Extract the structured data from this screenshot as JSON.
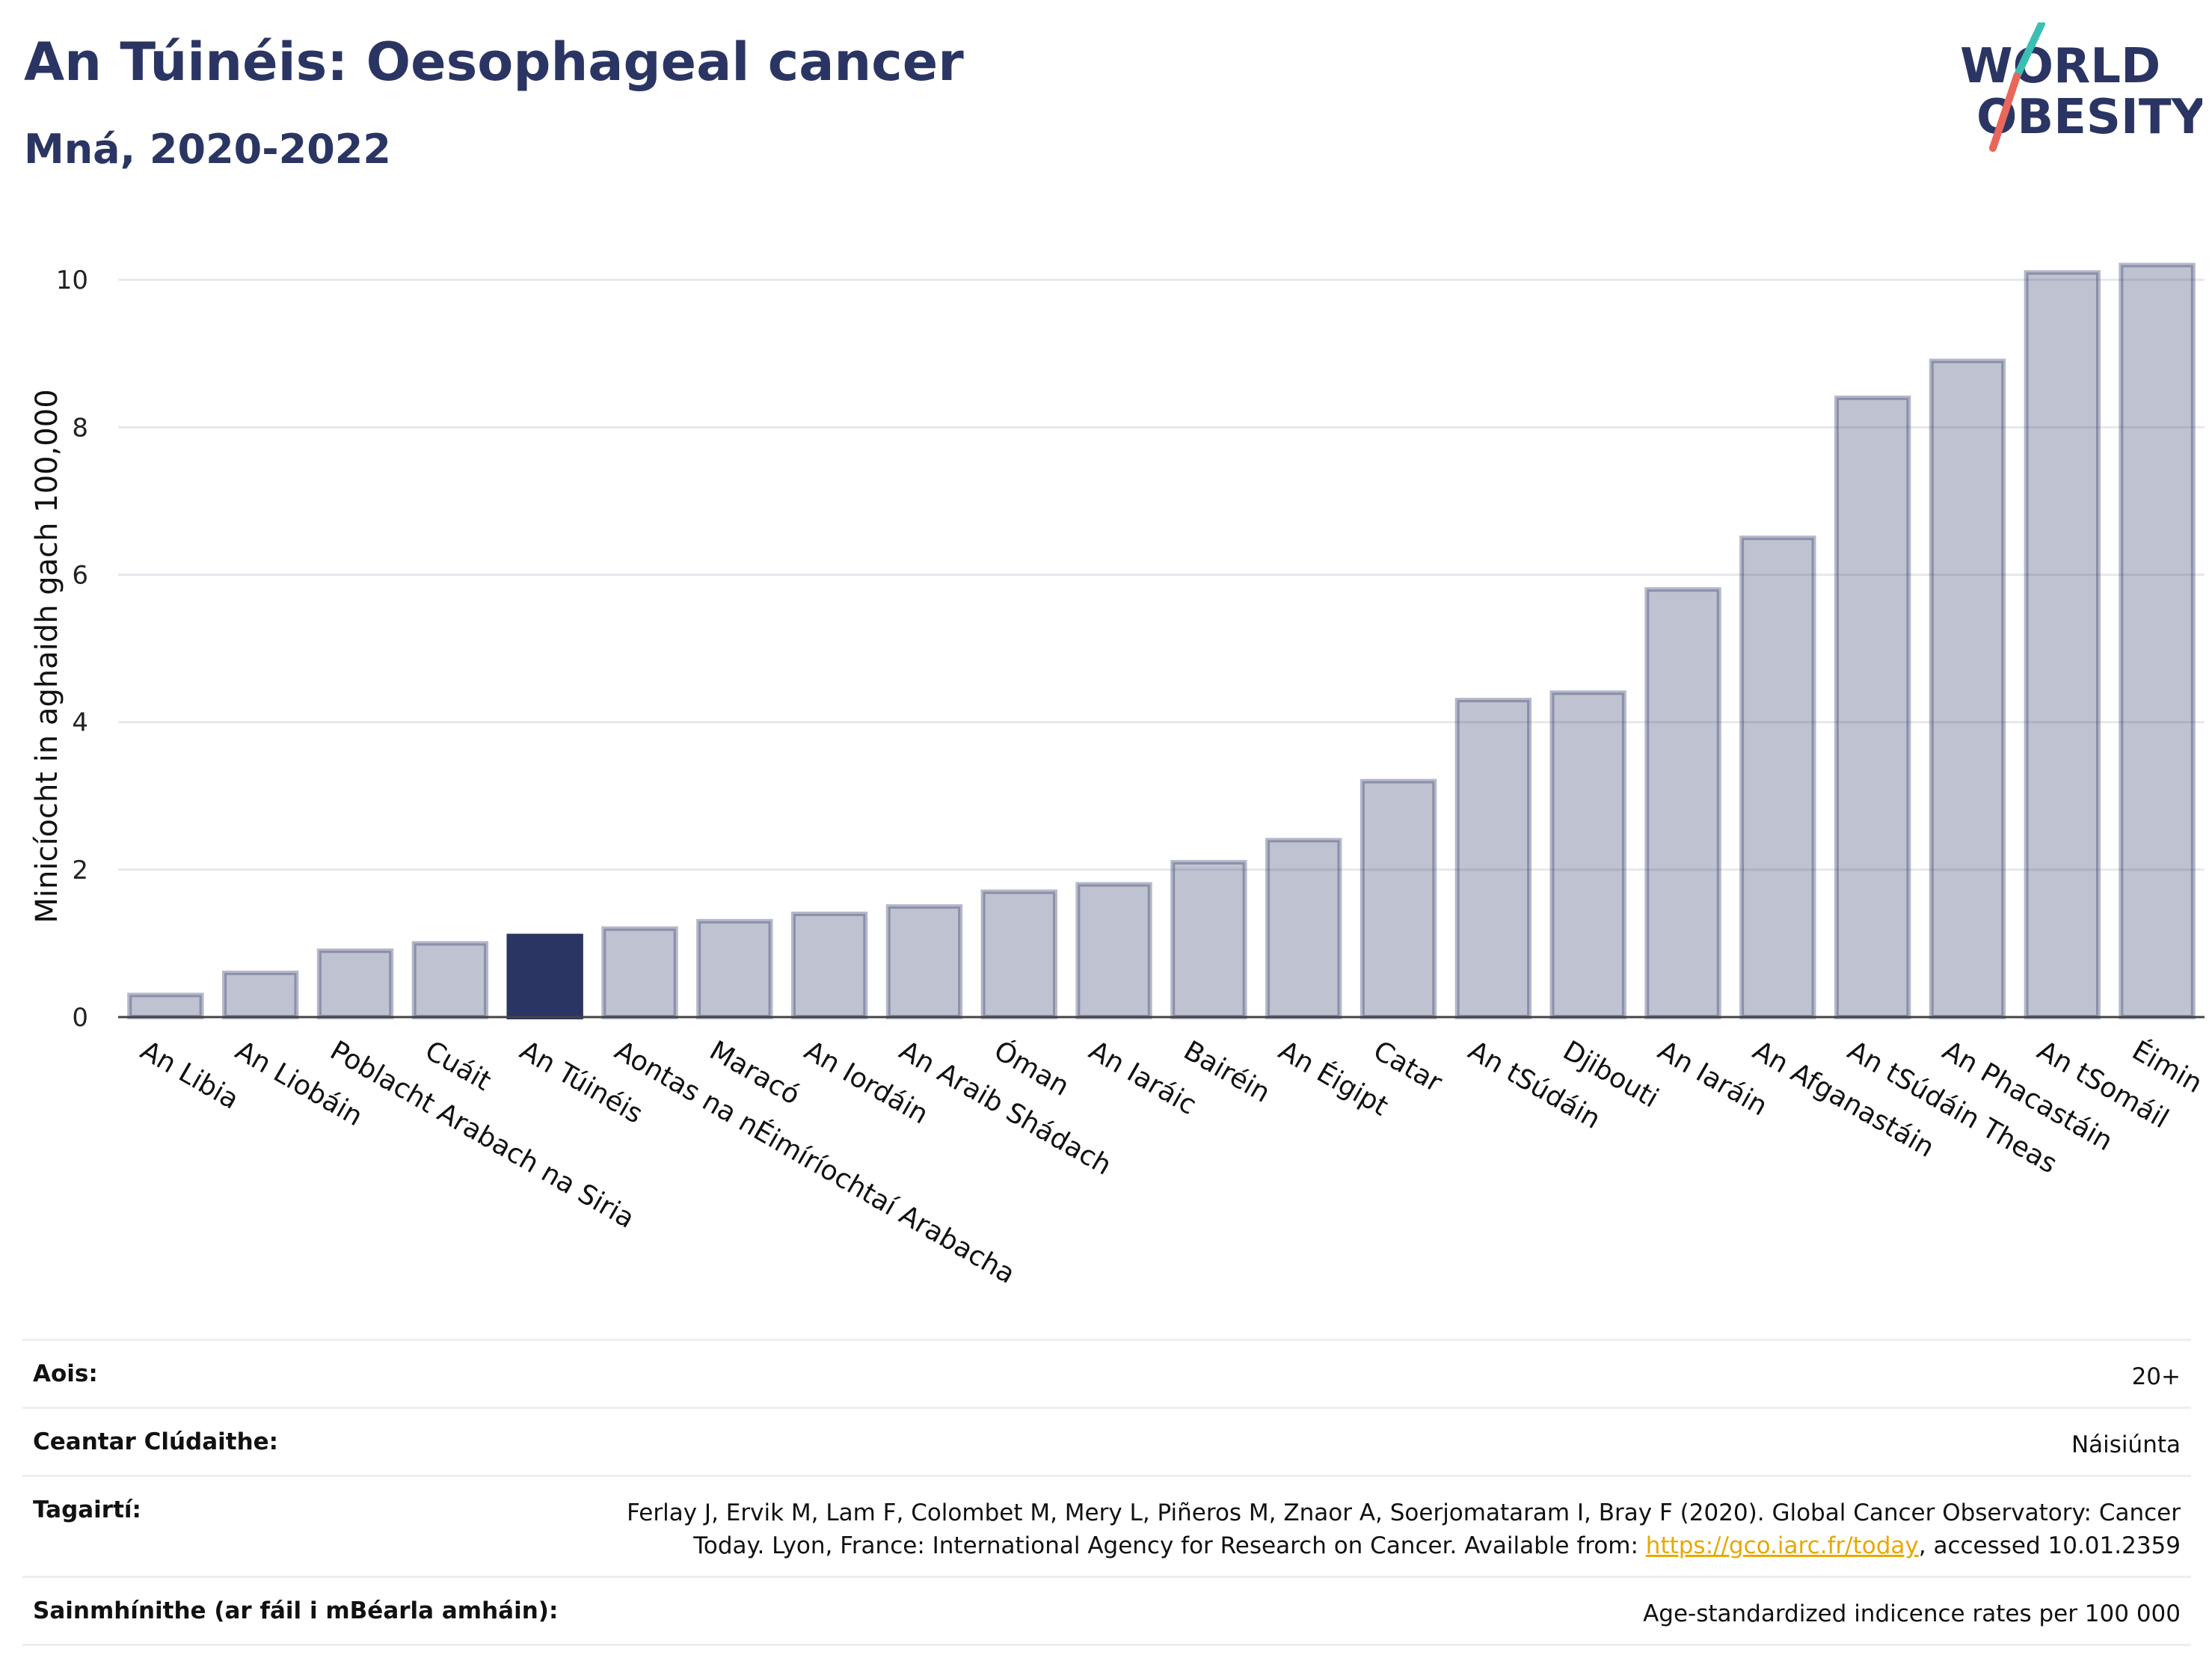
{
  "title": "An Túinéis: Oesophageal cancer",
  "subtitle": "Mná, 2020-2022",
  "logo": {
    "line1": "WORLD",
    "line2": "OBESITY",
    "colors": {
      "text": "#2a3563",
      "slash_top": "#3bbfb3",
      "slash_bottom": "#e8675a"
    }
  },
  "colors": {
    "bar": "#2a3563",
    "highlight": "#2a3563"
  },
  "chart_data": {
    "type": "bar",
    "ylabel": "Minicíocht in aghaidh gach 100,000",
    "xlabel": "",
    "ylim": [
      0,
      10.6
    ],
    "yticks": [
      0,
      2,
      4,
      6,
      8,
      10
    ],
    "grid": true,
    "categories": [
      "An Libia",
      "An Liobáin",
      "Poblacht Arabach na Siria",
      "Cuáit",
      "An Túinéis",
      "Aontas na nÉimíríochtaí Arabacha",
      "Maracó",
      "An Iordáin",
      "An Araib Shádach",
      "Óman",
      "An Iaráic",
      "Bairéin",
      "An Éigipt",
      "Catar",
      "An tSúdáin",
      "Djibouti",
      "An Iaráin",
      "An Afganastáin",
      "An tSúdáin Theas",
      "An Phacastáin",
      "An tSomáil",
      "Éimin"
    ],
    "values": [
      0.3,
      0.6,
      0.9,
      1.0,
      1.1,
      1.2,
      1.3,
      1.4,
      1.5,
      1.7,
      1.8,
      2.1,
      2.4,
      3.2,
      4.3,
      4.4,
      5.8,
      6.5,
      8.4,
      8.9,
      10.1,
      10.2
    ],
    "highlight": "An Túinéis"
  },
  "info": [
    {
      "key": "Aois:",
      "value": "20+"
    },
    {
      "key": "Ceantar Clúdaithe:",
      "value": "Náisiúnta"
    },
    {
      "key": "Tagairtí:",
      "value_before_link": "Ferlay J, Ervik M, Lam F, Colombet M, Mery L, Piñeros M, Znaor A, Soerjomataram I, Bray F (2020). Global Cancer Observatory: Cancer Today. Lyon, France: International Agency for Research on Cancer. Available from: ",
      "link": "https://gco.iarc.fr/today",
      "value_after_link": ", accessed 10.01.2359"
    },
    {
      "key": "Sainmhínithe (ar fáil i mBéarla amháin):",
      "value": "Age-standardized indicence rates per 100 000"
    }
  ]
}
